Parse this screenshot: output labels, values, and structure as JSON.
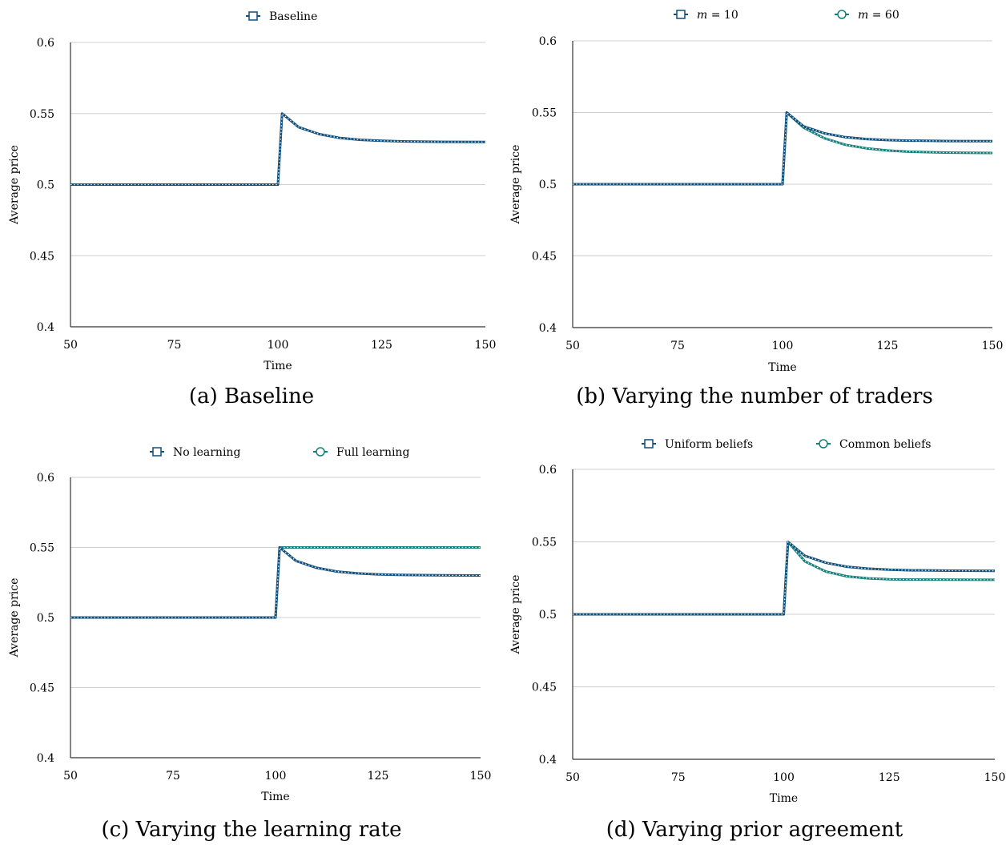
{
  "colors": {
    "primary": "#0e4f7d",
    "secondary": "#137f7a",
    "grid": "#cfcfcf",
    "marker_fill": "#ffffff"
  },
  "chart_data": [
    {
      "type": "line",
      "caption": "(a) Baseline",
      "xlabel": "Time",
      "ylabel": "Average price",
      "xlim": [
        50,
        150
      ],
      "ylim": [
        0.4,
        0.6
      ],
      "xticks": [
        "50",
        "75",
        "100",
        "125",
        "150"
      ],
      "yticks": [
        "0.4",
        "0.45",
        "0.5",
        "0.55",
        "0.6"
      ],
      "grid": "horizontal",
      "legend_position": "top",
      "series": [
        {
          "name": "Baseline",
          "marker": "square",
          "color": "#0e4f7d",
          "x": [
            50,
            100,
            101,
            105,
            110,
            115,
            120,
            125,
            130,
            140,
            150
          ],
          "y": [
            0.5,
            0.5,
            0.55,
            0.5404,
            0.5355,
            0.5328,
            0.5315,
            0.5308,
            0.5304,
            0.5301,
            0.53
          ]
        }
      ]
    },
    {
      "type": "line",
      "caption": "(b) Varying the number of traders",
      "xlabel": "Time",
      "ylabel": "Average price",
      "xlim": [
        50,
        150
      ],
      "ylim": [
        0.4,
        0.6
      ],
      "xticks": [
        "50",
        "75",
        "100",
        "125",
        "150"
      ],
      "yticks": [
        "0.4",
        "0.45",
        "0.5",
        "0.55",
        "0.6"
      ],
      "grid": "horizontal",
      "legend_position": "top",
      "series": [
        {
          "name": "m = 10",
          "name_var": "m",
          "name_rest": " = 10",
          "marker": "square",
          "color": "#0e4f7d",
          "x": [
            50,
            100,
            101,
            105,
            110,
            115,
            120,
            125,
            130,
            140,
            150
          ],
          "y": [
            0.5,
            0.5,
            0.55,
            0.5404,
            0.5355,
            0.5328,
            0.5315,
            0.5308,
            0.5304,
            0.5301,
            0.53
          ]
        },
        {
          "name": "m = 60",
          "name_var": "m",
          "name_rest": " = 60",
          "marker": "circle",
          "color": "#137f7a",
          "x": [
            50,
            100,
            101,
            105,
            110,
            115,
            120,
            125,
            130,
            140,
            150
          ],
          "y": [
            0.5,
            0.5,
            0.55,
            0.5395,
            0.532,
            0.5275,
            0.525,
            0.5235,
            0.5227,
            0.522,
            0.5218
          ]
        }
      ]
    },
    {
      "type": "line",
      "caption": "(c) Varying the learning rate",
      "xlabel": "Time",
      "ylabel": "Average price",
      "xlim": [
        50,
        150
      ],
      "ylim": [
        0.4,
        0.6
      ],
      "xticks": [
        "50",
        "75",
        "100",
        "125",
        "150"
      ],
      "yticks": [
        "0.4",
        "0.45",
        "0.5",
        "0.55",
        "0.6"
      ],
      "grid": "horizontal",
      "legend_position": "top",
      "series": [
        {
          "name": "No learning",
          "marker": "square",
          "color": "#0e4f7d",
          "x": [
            50,
            100,
            101,
            105,
            110,
            115,
            120,
            125,
            130,
            140,
            150
          ],
          "y": [
            0.5,
            0.5,
            0.55,
            0.5404,
            0.5355,
            0.5328,
            0.5315,
            0.5308,
            0.5304,
            0.5301,
            0.53
          ]
        },
        {
          "name": "Full learning",
          "marker": "circle",
          "color": "#137f7a",
          "x": [
            50,
            100,
            101,
            150
          ],
          "y": [
            0.5,
            0.5,
            0.55,
            0.55
          ]
        }
      ]
    },
    {
      "type": "line",
      "caption": "(d) Varying prior agreement",
      "xlabel": "Time",
      "ylabel": "Average price",
      "xlim": [
        50,
        150
      ],
      "ylim": [
        0.4,
        0.6
      ],
      "xticks": [
        "50",
        "75",
        "100",
        "125",
        "150"
      ],
      "yticks": [
        "0.4",
        "0.45",
        "0.5",
        "0.55",
        "0.6"
      ],
      "grid": "horizontal",
      "legend_position": "top",
      "series": [
        {
          "name": "Uniform beliefs",
          "marker": "square",
          "color": "#0e4f7d",
          "x": [
            50,
            100,
            101,
            105,
            110,
            115,
            120,
            125,
            130,
            140,
            150
          ],
          "y": [
            0.5,
            0.5,
            0.55,
            0.5404,
            0.5355,
            0.5328,
            0.5315,
            0.5308,
            0.5304,
            0.5301,
            0.53
          ]
        },
        {
          "name": "Common beliefs",
          "marker": "circle",
          "color": "#137f7a",
          "x": [
            50,
            100,
            101,
            105,
            110,
            115,
            120,
            125,
            130,
            140,
            150
          ],
          "y": [
            0.5,
            0.5,
            0.55,
            0.5365,
            0.5295,
            0.5262,
            0.5248,
            0.5242,
            0.524,
            0.5239,
            0.5238
          ]
        }
      ]
    }
  ]
}
